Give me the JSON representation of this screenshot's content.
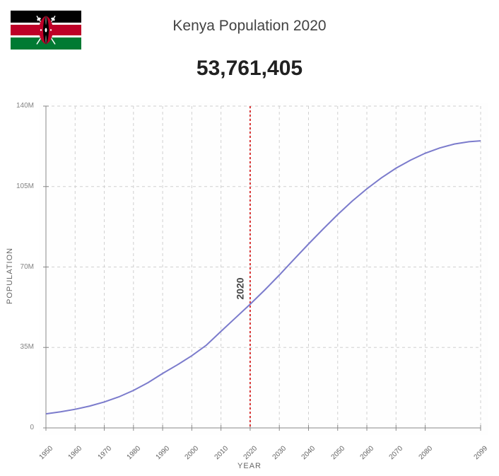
{
  "title": "Kenya Population 2020",
  "population_value": "53,761,405",
  "y_axis_title": "POPULATION",
  "x_axis_title": "YEAR",
  "marker_year_label": "2020",
  "marker_year": 2020,
  "flag": {
    "stripes": [
      "#000000",
      "#ffffff",
      "#be0027",
      "#ffffff",
      "#007a33"
    ],
    "shield_black": "#000000",
    "shield_red": "#be0027",
    "shield_white": "#ffffff"
  },
  "chart": {
    "type": "line",
    "x_range": [
      1950,
      2099
    ],
    "y_range": [
      0,
      140
    ],
    "x_ticks": [
      1950,
      1960,
      1970,
      1980,
      1990,
      2000,
      2010,
      2020,
      2030,
      2040,
      2050,
      2060,
      2070,
      2080,
      2099
    ],
    "y_ticks": [
      0,
      35,
      70,
      105,
      140
    ],
    "y_tick_labels": [
      "0",
      "35M",
      "70M",
      "105M",
      "140M"
    ],
    "line_color": "#7b7bcc",
    "line_width": 2,
    "marker_line_color": "#d93636",
    "marker_line_width": 2,
    "marker_line_dash": "3,3",
    "grid_color": "#d0d0d0",
    "grid_dash": "4,4",
    "background_color": "#fefefe",
    "axis_color": "#888888",
    "tick_font_size": 10,
    "tick_color": "#838383",
    "data_points": [
      {
        "x": 1950,
        "y": 6.1
      },
      {
        "x": 1955,
        "y": 7.0
      },
      {
        "x": 1960,
        "y": 8.1
      },
      {
        "x": 1965,
        "y": 9.5
      },
      {
        "x": 1970,
        "y": 11.3
      },
      {
        "x": 1975,
        "y": 13.5
      },
      {
        "x": 1980,
        "y": 16.3
      },
      {
        "x": 1985,
        "y": 19.7
      },
      {
        "x": 1990,
        "y": 23.7
      },
      {
        "x": 1995,
        "y": 27.4
      },
      {
        "x": 2000,
        "y": 31.4
      },
      {
        "x": 2005,
        "y": 36.0
      },
      {
        "x": 2010,
        "y": 42.0
      },
      {
        "x": 2015,
        "y": 47.9
      },
      {
        "x": 2020,
        "y": 53.8
      },
      {
        "x": 2025,
        "y": 60.0
      },
      {
        "x": 2030,
        "y": 66.5
      },
      {
        "x": 2035,
        "y": 73.3
      },
      {
        "x": 2040,
        "y": 80.0
      },
      {
        "x": 2045,
        "y": 86.5
      },
      {
        "x": 2050,
        "y": 92.8
      },
      {
        "x": 2055,
        "y": 98.7
      },
      {
        "x": 2060,
        "y": 104.0
      },
      {
        "x": 2065,
        "y": 108.8
      },
      {
        "x": 2070,
        "y": 113.0
      },
      {
        "x": 2075,
        "y": 116.5
      },
      {
        "x": 2080,
        "y": 119.5
      },
      {
        "x": 2085,
        "y": 121.8
      },
      {
        "x": 2090,
        "y": 123.5
      },
      {
        "x": 2095,
        "y": 124.5
      },
      {
        "x": 2099,
        "y": 124.9
      }
    ]
  }
}
